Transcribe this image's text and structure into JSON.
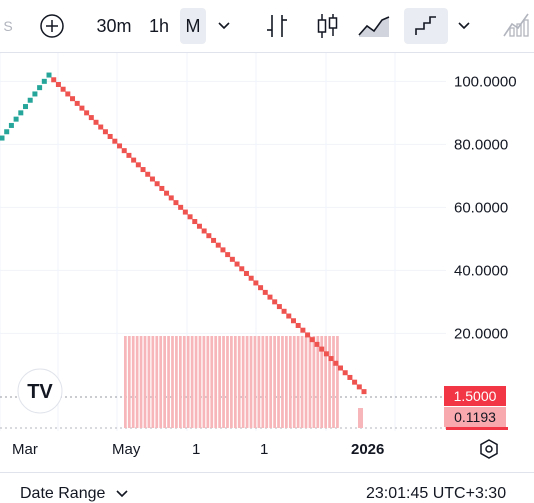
{
  "toolbar": {
    "intervals": [
      "30m",
      "1h",
      "M"
    ],
    "active_interval": "M"
  },
  "chart_data": {
    "type": "line",
    "title": "",
    "xlabel": "",
    "ylabel": "",
    "y_ticks": [
      "100.0000",
      "80.0000",
      "60.0000",
      "40.0000",
      "20.0000"
    ],
    "ylim": [
      -11,
      109
    ],
    "series": [
      {
        "values": [
          82,
          84,
          86,
          88,
          90,
          92,
          94,
          96,
          98,
          100,
          102,
          100.5,
          99,
          97.5,
          96,
          94.5,
          93,
          91.5,
          90,
          88.5,
          87,
          85.5,
          84,
          82.5,
          81,
          79.5,
          78,
          76.5,
          75,
          73.5,
          72,
          70.5,
          69,
          67.5,
          66,
          64.5,
          63,
          61.5,
          60,
          58.5,
          57,
          55.5,
          54,
          52.5,
          51,
          49.5,
          48,
          46.5,
          45,
          43.5,
          42,
          40.5,
          39,
          37.5,
          36,
          34.5,
          33,
          31.5,
          30,
          28.5,
          27,
          25.5,
          24,
          22.5,
          21,
          19.5,
          18,
          16.5,
          15,
          13.5,
          12,
          10.5,
          9,
          7.5,
          6,
          4.5,
          3,
          1.5
        ]
      }
    ],
    "volume_bars": 55,
    "grid": true
  },
  "price_labels": {
    "last_price": "1.5000",
    "second_value": "0.1193",
    "last_price_color": "#f23645",
    "second_color": "#f7a9ae"
  },
  "x_axis": {
    "labels": [
      "Mar",
      "May",
      "1",
      "1",
      "2026"
    ]
  },
  "bottom": {
    "date_range": "Date Range",
    "time": "23:01:45 UTC+3:30"
  },
  "colors": {
    "up": "#26a69a",
    "down": "#ef5350",
    "volume": "#f7b6b9"
  }
}
